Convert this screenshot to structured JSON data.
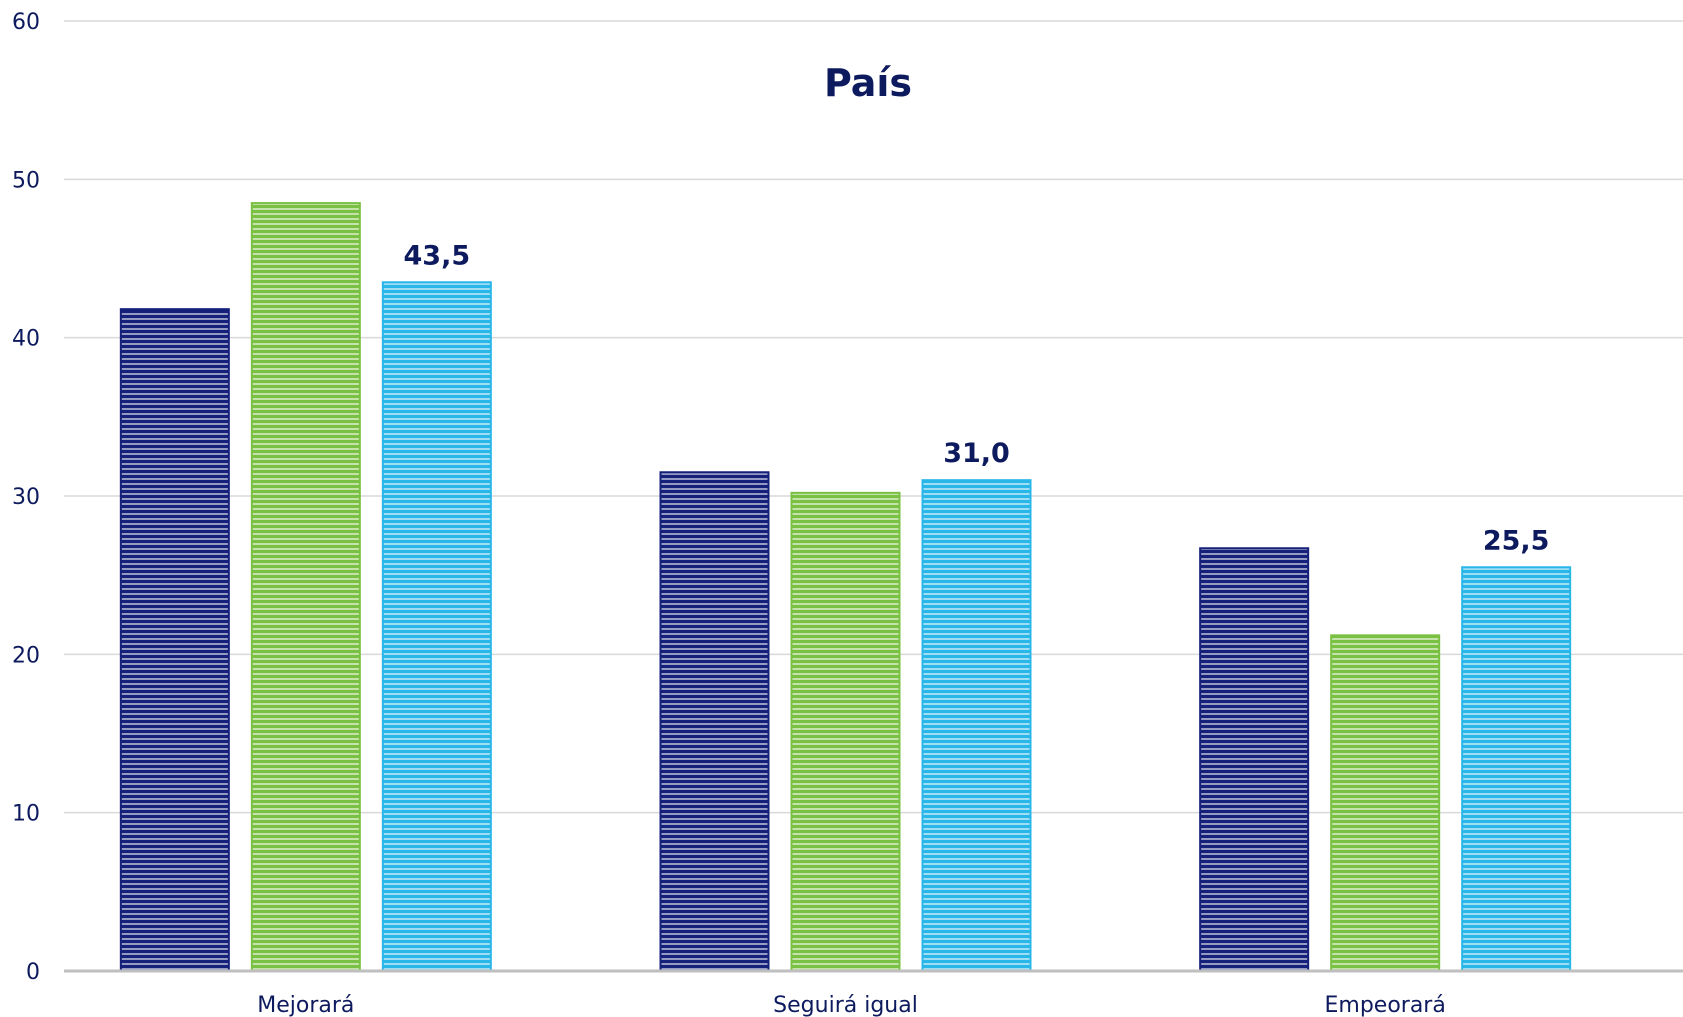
{
  "chart_data": {
    "type": "bar",
    "title": "País",
    "categories": [
      "Mejorará",
      "Seguirá igual",
      "Empeorará"
    ],
    "series": [
      {
        "color": "#14207a",
        "values": [
          41.8,
          31.5,
          26.7
        ]
      },
      {
        "color": "#7ac143",
        "values": [
          48.5,
          30.2,
          21.2
        ]
      },
      {
        "color": "#29b6e8",
        "values": [
          43.5,
          31.0,
          25.5
        ]
      }
    ],
    "data_labels": {
      "series_index": 2,
      "labels": [
        "43,5",
        "31,0",
        "25,5"
      ]
    },
    "yticks": [
      "0",
      "10",
      "20",
      "30",
      "40",
      "50",
      "60"
    ],
    "ylim": [
      0,
      60
    ],
    "grid": true,
    "legend": "none"
  }
}
